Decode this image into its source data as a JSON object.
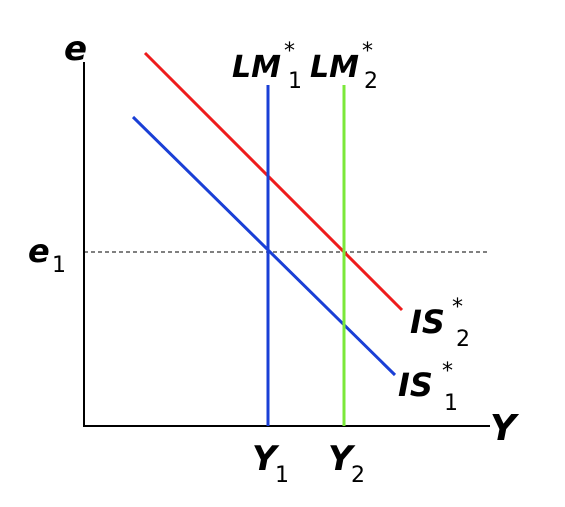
{
  "axes": {
    "y_label": "e",
    "x_label": "Y"
  },
  "reference_level": {
    "symbol": "e",
    "subscript": "1"
  },
  "curves": {
    "lm1": {
      "symbol": "LM",
      "superscript": "*",
      "subscript": "1",
      "color": "#1a3fd6"
    },
    "lm2": {
      "symbol": "LM",
      "superscript": "*",
      "subscript": "2",
      "color": "#7be83a"
    },
    "is1": {
      "symbol": "IS",
      "superscript": "*",
      "subscript": "1",
      "color": "#1a3fd6"
    },
    "is2": {
      "symbol": "IS",
      "superscript": "*",
      "subscript": "2",
      "color": "#ee1c1c"
    }
  },
  "output_levels": {
    "y1": {
      "symbol": "Y",
      "subscript": "1"
    },
    "y2": {
      "symbol": "Y",
      "subscript": "2"
    }
  }
}
